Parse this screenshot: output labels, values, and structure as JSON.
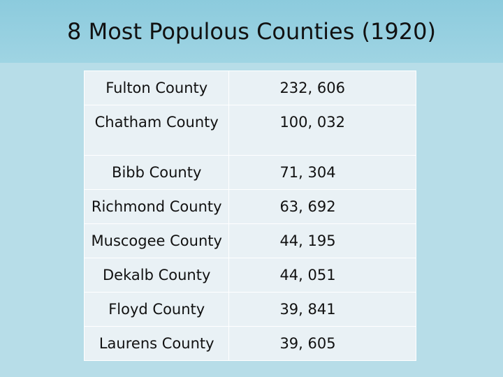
{
  "header": {
    "title": "8 Most Populous Counties (1920)"
  },
  "table": {
    "rows": [
      [
        "Fulton County",
        "232, 606"
      ],
      [
        "Chatham County",
        "100, 032"
      ],
      [
        "Bibb County",
        "71, 304"
      ],
      [
        "Richmond County",
        "63, 692"
      ],
      [
        "Muscogee County",
        "44, 195"
      ],
      [
        "Dekalb County",
        "44, 051"
      ],
      [
        "Floyd County",
        "39, 841"
      ],
      [
        "Laurens County",
        "39, 605"
      ]
    ]
  }
}
